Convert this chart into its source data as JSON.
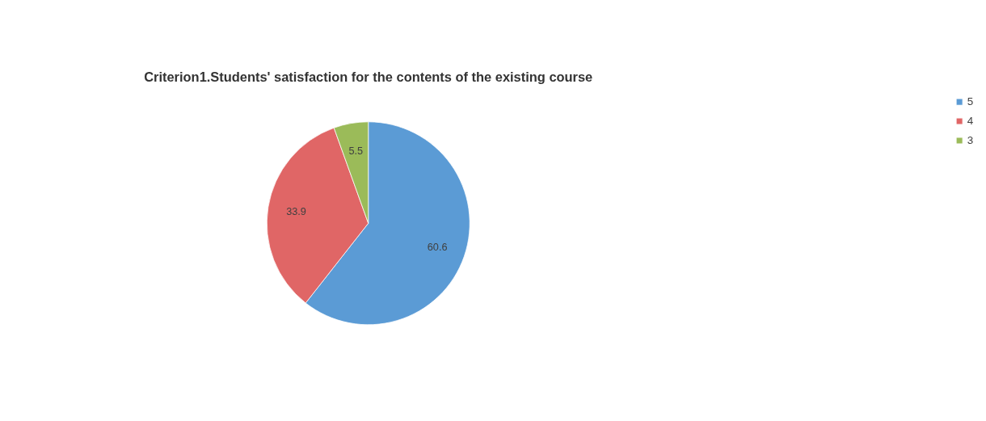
{
  "chart_data": {
    "type": "pie",
    "title": "Criterion1.Students' satisfaction for the contents of the existing course",
    "categories": [
      "5",
      "4",
      "3"
    ],
    "values": [
      60.6,
      33.9,
      5.5
    ],
    "colors": [
      "#5b9bd5",
      "#e06666",
      "#9bbb59"
    ],
    "data_labels": true,
    "legend": "right"
  }
}
